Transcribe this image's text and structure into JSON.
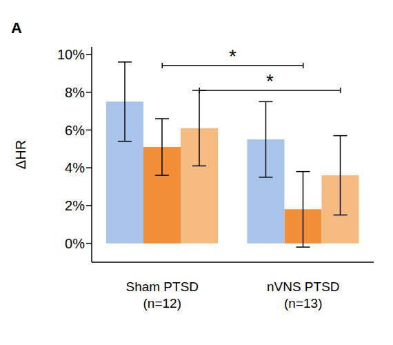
{
  "chart_data": {
    "type": "bar",
    "title": "A",
    "ylabel": "ΔHR",
    "categories": [
      "Sham PTSD\n(n=12)",
      "nVNS PTSD\n(n=13)"
    ],
    "series": [
      {
        "color": "#a9c4eb",
        "values": [
          7.5,
          5.5
        ],
        "errors": [
          2.1,
          2.0
        ]
      },
      {
        "color": "#f28f38",
        "values": [
          5.1,
          1.8
        ],
        "errors": [
          1.5,
          2.0
        ]
      },
      {
        "color": "#f5bb80",
        "values": [
          6.1,
          3.6
        ],
        "errors": [
          2.0,
          2.1
        ]
      }
    ],
    "ylim": [
      -1,
      10.4
    ],
    "yticks": [
      {
        "value": 0,
        "label": "0%"
      },
      {
        "value": 2,
        "label": "2%"
      },
      {
        "value": 4,
        "label": "4%"
      },
      {
        "value": 6,
        "label": "6%"
      },
      {
        "value": 8,
        "label": "8%"
      },
      {
        "value": 10,
        "label": "10%"
      }
    ],
    "annotations": [
      {
        "text": "*",
        "series": 1
      },
      {
        "text": "*",
        "series": 2
      }
    ]
  }
}
